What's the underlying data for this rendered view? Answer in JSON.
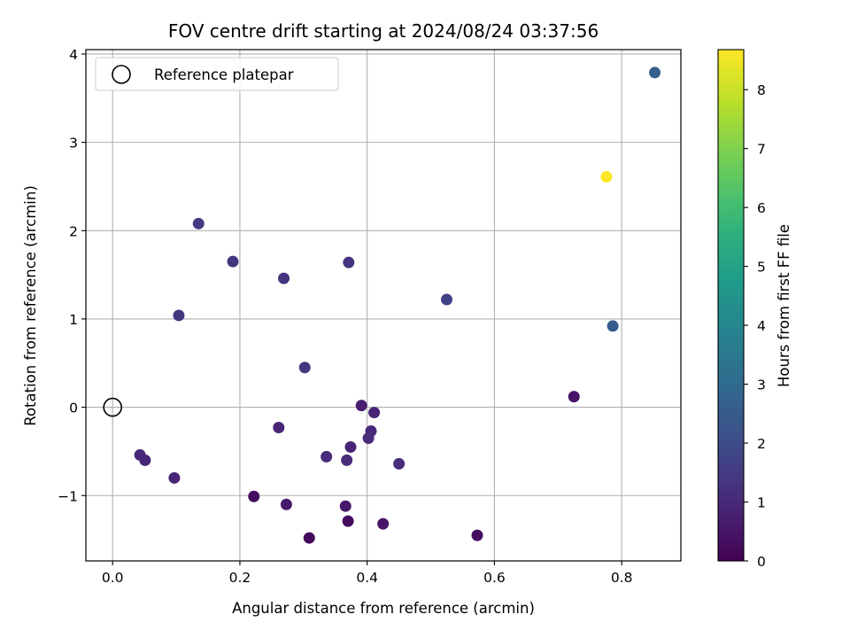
{
  "chart_data": {
    "type": "scatter",
    "title": "FOV centre drift starting at 2024/08/24 03:37:56",
    "xlabel": "Angular distance from reference (arcmin)",
    "ylabel": "Rotation from reference (arcmin)",
    "xlim": [
      -0.042,
      0.893
    ],
    "ylim": [
      -1.74,
      4.05
    ],
    "xticks": [
      0.0,
      0.2,
      0.4,
      0.6,
      0.8
    ],
    "xtick_labels": [
      "0.0",
      "0.2",
      "0.4",
      "0.6",
      "0.8"
    ],
    "yticks": [
      -1,
      0,
      1,
      2,
      3,
      4
    ],
    "ytick_labels": [
      "−1",
      "0",
      "1",
      "2",
      "3",
      "4"
    ],
    "grid": true,
    "legend": {
      "placement": "top-left",
      "entries": [
        "Reference platepar"
      ]
    },
    "reference_point": {
      "x": 0.0,
      "y": 0.0,
      "label": "Reference platepar"
    },
    "colorbar": {
      "label": "Hours from first FF file",
      "colormap": "viridis",
      "range": [
        0,
        8.68
      ],
      "ticks": [
        0,
        1,
        2,
        3,
        4,
        5,
        6,
        7,
        8
      ],
      "tick_labels": [
        "0",
        "1",
        "2",
        "3",
        "4",
        "5",
        "6",
        "7",
        "8"
      ]
    },
    "points": [
      {
        "x": 0.852,
        "y": 3.79,
        "hours": 2.6
      },
      {
        "x": 0.776,
        "y": 2.61,
        "hours": 8.65
      },
      {
        "x": 0.135,
        "y": 2.08,
        "hours": 1.5
      },
      {
        "x": 0.189,
        "y": 1.65,
        "hours": 1.4
      },
      {
        "x": 0.371,
        "y": 1.64,
        "hours": 1.3
      },
      {
        "x": 0.269,
        "y": 1.46,
        "hours": 1.3
      },
      {
        "x": 0.525,
        "y": 1.22,
        "hours": 1.7
      },
      {
        "x": 0.104,
        "y": 1.04,
        "hours": 1.4
      },
      {
        "x": 0.786,
        "y": 0.92,
        "hours": 2.5
      },
      {
        "x": 0.302,
        "y": 0.45,
        "hours": 1.4
      },
      {
        "x": 0.725,
        "y": 0.12,
        "hours": 0.5
      },
      {
        "x": 0.391,
        "y": 0.02,
        "hours": 0.7
      },
      {
        "x": 0.411,
        "y": -0.06,
        "hours": 0.9
      },
      {
        "x": 0.261,
        "y": -0.23,
        "hours": 0.9
      },
      {
        "x": 0.406,
        "y": -0.27,
        "hours": 1.0
      },
      {
        "x": 0.402,
        "y": -0.35,
        "hours": 1.1
      },
      {
        "x": 0.374,
        "y": -0.45,
        "hours": 0.9
      },
      {
        "x": 0.043,
        "y": -0.54,
        "hours": 1.0
      },
      {
        "x": 0.336,
        "y": -0.56,
        "hours": 1.1
      },
      {
        "x": 0.051,
        "y": -0.6,
        "hours": 0.9
      },
      {
        "x": 0.368,
        "y": -0.6,
        "hours": 1.1
      },
      {
        "x": 0.45,
        "y": -0.64,
        "hours": 1.1
      },
      {
        "x": 0.097,
        "y": -0.8,
        "hours": 0.9
      },
      {
        "x": 0.222,
        "y": -1.01,
        "hours": 0.3
      },
      {
        "x": 0.273,
        "y": -1.1,
        "hours": 0.6
      },
      {
        "x": 0.366,
        "y": -1.12,
        "hours": 0.6
      },
      {
        "x": 0.37,
        "y": -1.29,
        "hours": 0.3
      },
      {
        "x": 0.425,
        "y": -1.32,
        "hours": 0.5
      },
      {
        "x": 0.573,
        "y": -1.45,
        "hours": 0.3
      },
      {
        "x": 0.309,
        "y": -1.48,
        "hours": 0.2
      }
    ]
  }
}
